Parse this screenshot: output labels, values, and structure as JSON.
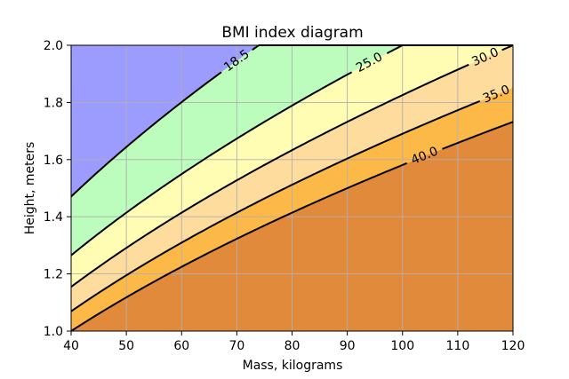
{
  "chart_data": {
    "type": "contourf",
    "title": "BMI index diagram",
    "xlabel": "Mass, kilograms",
    "ylabel": "Height, meters",
    "xlim": [
      40,
      120
    ],
    "ylim": [
      1.0,
      2.0
    ],
    "xticks": [
      "40",
      "50",
      "60",
      "70",
      "80",
      "90",
      "100",
      "110",
      "120"
    ],
    "yticks": [
      "1.0",
      "1.2",
      "1.4",
      "1.6",
      "1.8",
      "2.0"
    ],
    "grid": true,
    "formula": "mass / height^2",
    "levels": [
      18.5,
      25.0,
      30.0,
      35.0,
      40.0
    ],
    "level_labels": [
      "18.5",
      "25.0",
      "30.0",
      "35.0",
      "40.0"
    ],
    "level_label_masses": [
      70,
      94,
      115,
      117,
      104
    ],
    "band_colors": [
      "#9c9cff",
      "#bcfcbc",
      "#fffcb3",
      "#fddc9d",
      "#fdb947",
      "#e18a3c"
    ],
    "line_color": "#000000",
    "grid_color": "#b0b0b0"
  }
}
